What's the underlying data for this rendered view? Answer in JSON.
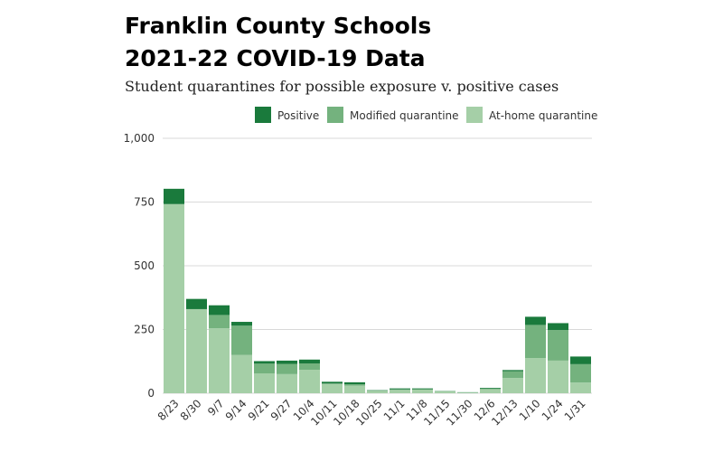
{
  "header": {
    "title_line1": "Franklin County Schools",
    "title_line2": "2021-22 COVID-19 Data",
    "subtitle": "Student quarantines for possible exposure v. positive cases"
  },
  "colors": {
    "positive": "#1a7a3c",
    "modified": "#74b27e",
    "at_home": "#a5cfa7",
    "grid": "#d9d9d9"
  },
  "chart_data": {
    "type": "bar",
    "stacked": true,
    "categories": [
      "8/23",
      "8/30",
      "9/7",
      "9/14",
      "9/21",
      "9/27",
      "10/4",
      "10/11",
      "10/18",
      "10/25",
      "11/1",
      "11/8",
      "11/15",
      "11/30",
      "12/6",
      "12/13",
      "1/10",
      "1/24",
      "1/31"
    ],
    "series": [
      {
        "name": "At-home quarantine",
        "values": [
          742,
          330,
          255,
          150,
          78,
          75,
          92,
          36,
          30,
          10,
          13,
          14,
          8,
          3,
          16,
          60,
          138,
          128,
          42
        ]
      },
      {
        "name": "Modified quarantine",
        "values": [
          0,
          0,
          52,
          115,
          38,
          40,
          25,
          2,
          5,
          0,
          2,
          2,
          0,
          0,
          2,
          26,
          130,
          120,
          72
        ]
      },
      {
        "name": "Positive",
        "values": [
          60,
          40,
          38,
          15,
          10,
          13,
          15,
          7,
          8,
          2,
          4,
          3,
          1,
          1,
          3,
          5,
          32,
          27,
          30
        ]
      }
    ],
    "ylim": [
      0,
      1000
    ],
    "yticks": [
      "0",
      "250",
      "500",
      "750",
      "1,000"
    ],
    "ytick_values": [
      0,
      250,
      500,
      750,
      1000
    ],
    "legend": [
      "Positive",
      "Modified quarantine",
      "At-home quarantine"
    ],
    "legend_position": "top-right",
    "grid": true
  }
}
